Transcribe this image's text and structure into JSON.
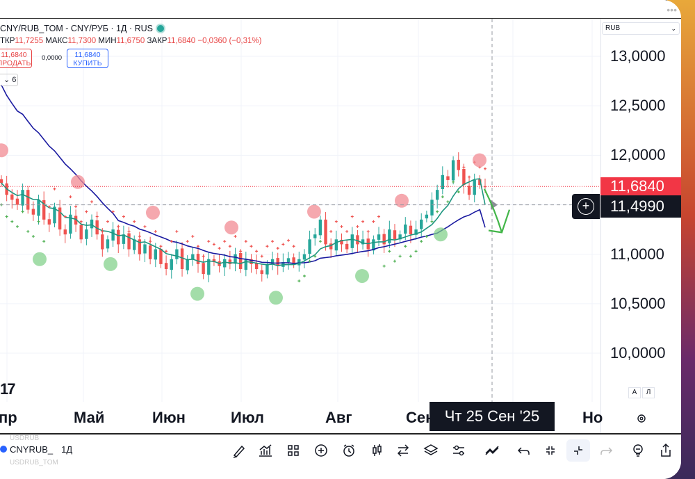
{
  "header": {
    "symbol": "CNY/RUB_TOM - CNY/РУБ · 1Д · RUS",
    "ohlc": {
      "open_label": "ТКР",
      "open": "11,7255",
      "high_label": "МАКС",
      "high": "11,7300",
      "low_label": "МИН",
      "low": "11,6750",
      "close_label": "ЗАКР",
      "close": "11,6840",
      "change": "−0,0360 (−0,31%)"
    },
    "sell": {
      "price": "11,6840",
      "label": "ПРОДАТЬ"
    },
    "spread": "0,0000",
    "buy": {
      "price": "11,6840",
      "label": "КУПИТЬ"
    },
    "indicators_count": "6"
  },
  "price_axis": {
    "currency": "RUB",
    "labels": [
      "13,0000",
      "12,5000",
      "12,0000",
      "11,0000",
      "10,5000",
      "10,0000"
    ],
    "last_price": "11,6840",
    "crosshair_price": "11,4990",
    "auto_label": "A",
    "log_label": "Л"
  },
  "time_axis": {
    "labels": [
      "пр",
      "Май",
      "Июн",
      "Июл",
      "Авг",
      "Сен",
      "Но"
    ],
    "crosshair_date": "Чт 25 Сен '25"
  },
  "logo_text": "17",
  "bottom_bar": {
    "ticker": "CNYRUB_",
    "timeframe": "1Д",
    "ghost_top": "USDRUB",
    "ghost_bottom": "USDRUB_TOM"
  },
  "colors": {
    "up": "#26a69a",
    "down": "#ef5350",
    "sma_fast": "#1e9680",
    "sma_slow": "#1a1aa0",
    "accent": "#2962ff",
    "sell": "#e84444"
  },
  "chart_data": {
    "type": "candlestick",
    "symbol": "CNY/RUB_TOM",
    "timeframe": "1D",
    "y_range": [
      9.7,
      13.2
    ],
    "x_labels": [
      "Апр",
      "Май",
      "Июн",
      "Июл",
      "Авг",
      "Сен",
      "Ноя"
    ],
    "closes": [
      11.72,
      11.6,
      11.55,
      11.5,
      11.65,
      11.45,
      11.4,
      11.55,
      11.35,
      11.3,
      11.48,
      11.25,
      11.2,
      11.4,
      11.3,
      11.15,
      11.25,
      11.35,
      11.2,
      11.05,
      11.15,
      11.25,
      11.1,
      11.2,
      11.05,
      11.15,
      11.0,
      11.1,
      10.95,
      11.05,
      10.9,
      10.85,
      10.95,
      11.05,
      10.85,
      10.95,
      11.0,
      10.9,
      10.8,
      10.95,
      10.92,
      10.88,
      10.95,
      10.9,
      11.0,
      10.85,
      10.95,
      10.9,
      10.85,
      10.8,
      10.9,
      10.95,
      10.88,
      10.92,
      10.96,
      10.9,
      10.95,
      11.0,
      11.15,
      11.2,
      11.35,
      11.1,
      11.05,
      11.15,
      11.1,
      11.05,
      11.2,
      11.1,
      11.15,
      11.05,
      11.15,
      11.2,
      11.1,
      11.25,
      11.15,
      11.2,
      11.3,
      11.2,
      11.25,
      11.35,
      11.4,
      11.55,
      11.65,
      11.8,
      11.75,
      11.95,
      11.85,
      11.7,
      11.6,
      11.75,
      11.7,
      11.684
    ],
    "sma_fast_end": 11.5,
    "sma_slow_end": 11.27,
    "last_price": 11.684,
    "crosshair_price": 11.499,
    "crosshair_date": "2025-09-25"
  }
}
